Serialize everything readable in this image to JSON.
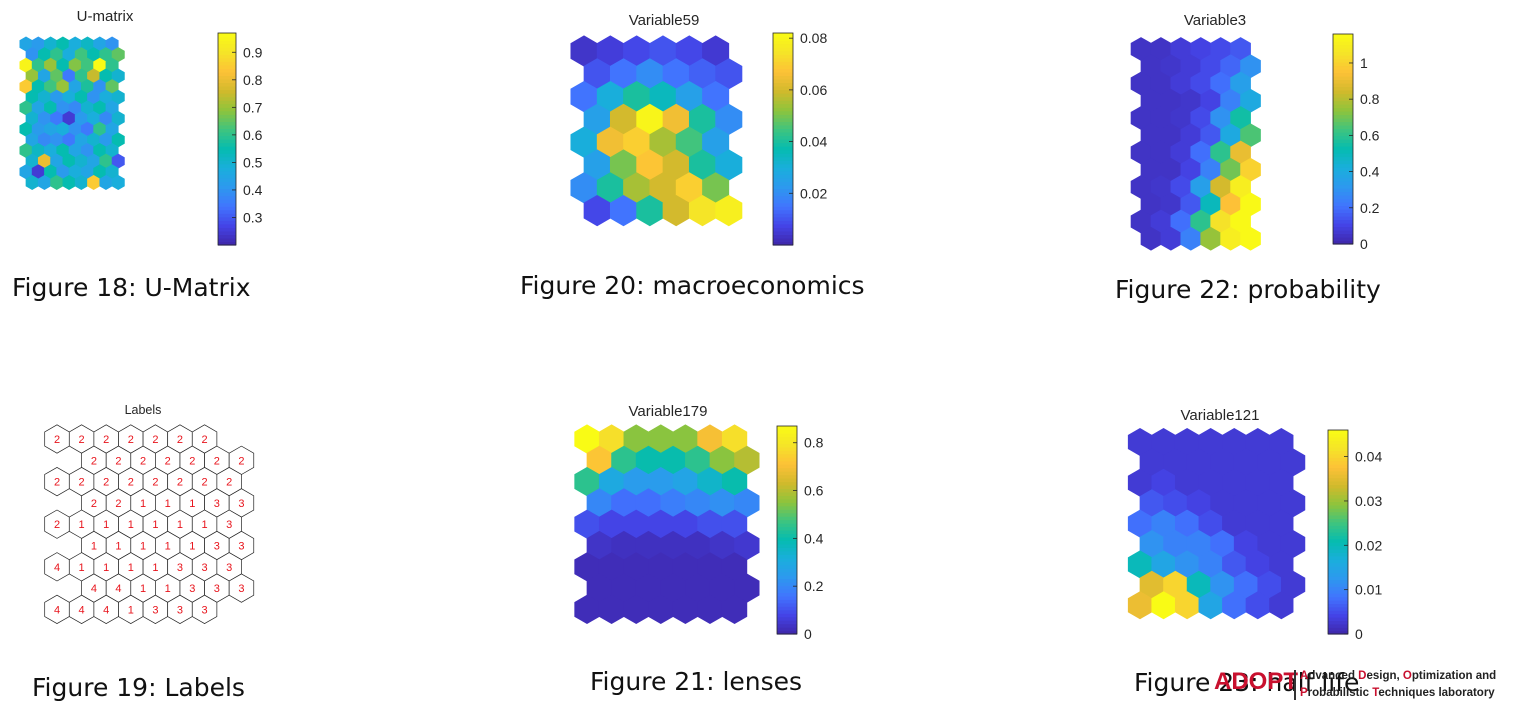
{
  "colormap": [
    "#3e26a8",
    "#4443e6",
    "#4174fe",
    "#2d98ef",
    "#1aaedc",
    "#05bcb0",
    "#3ec47f",
    "#8ec43c",
    "#d1ba2c",
    "#fdc137",
    "#f5e428",
    "#f9fb15"
  ],
  "chart_data": [
    {
      "id": "umatrix",
      "type": "heatmap",
      "title": "U-matrix",
      "caption": "Figure 18: U-Matrix",
      "rows": 14,
      "cols": 8,
      "vmin": 0.2,
      "vmax": 0.97,
      "ticks": [
        0.3,
        0.4,
        0.5,
        0.6,
        0.7,
        0.8,
        0.9
      ],
      "tick_labels": [
        "0.3",
        "0.4",
        "0.5",
        "0.6",
        "0.7",
        "0.8",
        "0.9"
      ],
      "values": [
        [
          0.45,
          0.42,
          0.5,
          0.55,
          0.48,
          0.52,
          0.45,
          0.4
        ],
        [
          0.4,
          0.55,
          0.6,
          0.48,
          0.62,
          0.55,
          0.6,
          0.65
        ],
        [
          0.95,
          0.6,
          0.7,
          0.55,
          0.68,
          0.62,
          0.97,
          0.6
        ],
        [
          0.7,
          0.45,
          0.65,
          0.35,
          0.6,
          0.75,
          0.55,
          0.5
        ],
        [
          0.85,
          0.55,
          0.62,
          0.7,
          0.45,
          0.58,
          0.4,
          0.65
        ],
        [
          0.55,
          0.5,
          0.42,
          0.48,
          0.55,
          0.4,
          0.48,
          0.5
        ],
        [
          0.6,
          0.45,
          0.55,
          0.4,
          0.38,
          0.5,
          0.55,
          0.45
        ],
        [
          0.5,
          0.4,
          0.35,
          0.25,
          0.42,
          0.48,
          0.38,
          0.5
        ],
        [
          0.55,
          0.42,
          0.45,
          0.48,
          0.4,
          0.35,
          0.6,
          0.45
        ],
        [
          0.45,
          0.38,
          0.4,
          0.35,
          0.45,
          0.5,
          0.42,
          0.55
        ],
        [
          0.6,
          0.52,
          0.48,
          0.55,
          0.45,
          0.4,
          0.55,
          0.5
        ],
        [
          0.5,
          0.8,
          0.45,
          0.55,
          0.5,
          0.45,
          0.6,
          0.3
        ],
        [
          0.45,
          0.25,
          0.55,
          0.42,
          0.48,
          0.45,
          0.55,
          0.5
        ],
        [
          0.5,
          0.45,
          0.6,
          0.55,
          0.5,
          0.85,
          0.45,
          0.48
        ]
      ]
    },
    {
      "id": "var59",
      "type": "heatmap",
      "title": "Variable59",
      "caption": "Figure 20: macroeconomics",
      "rows": 8,
      "cols": 6,
      "vmin": 0.0,
      "vmax": 0.082,
      "ticks": [
        0.02,
        0.04,
        0.06,
        0.08
      ],
      "tick_labels": [
        "0.02",
        "0.04",
        "0.06",
        "0.08"
      ],
      "values": [
        [
          0.004,
          0.006,
          0.008,
          0.01,
          0.008,
          0.005
        ],
        [
          0.01,
          0.015,
          0.02,
          0.015,
          0.012,
          0.01
        ],
        [
          0.015,
          0.03,
          0.04,
          0.035,
          0.025,
          0.015
        ],
        [
          0.025,
          0.06,
          0.08,
          0.065,
          0.04,
          0.02
        ],
        [
          0.03,
          0.065,
          0.07,
          0.055,
          0.045,
          0.025
        ],
        [
          0.025,
          0.05,
          0.068,
          0.06,
          0.04,
          0.03
        ],
        [
          0.02,
          0.04,
          0.055,
          0.06,
          0.07,
          0.05
        ],
        [
          0.008,
          0.015,
          0.04,
          0.06,
          0.075,
          0.078
        ]
      ]
    },
    {
      "id": "var3",
      "type": "heatmap",
      "title": "Variable3",
      "caption": "Figure 22: probability",
      "rows": 12,
      "cols": 6,
      "vmin": 0.0,
      "vmax": 1.16,
      "ticks": [
        0,
        0.2,
        0.4,
        0.6,
        0.8,
        1
      ],
      "tick_labels": [
        "0",
        "0.2",
        "0.4",
        "0.6",
        "0.8",
        "1"
      ],
      "values": [
        [
          0.05,
          0.05,
          0.08,
          0.1,
          0.12,
          0.15
        ],
        [
          0.05,
          0.06,
          0.08,
          0.12,
          0.18,
          0.3
        ],
        [
          0.05,
          0.05,
          0.08,
          0.12,
          0.2,
          0.35
        ],
        [
          0.05,
          0.05,
          0.06,
          0.1,
          0.25,
          0.4
        ],
        [
          0.05,
          0.05,
          0.06,
          0.12,
          0.3,
          0.55
        ],
        [
          0.05,
          0.05,
          0.08,
          0.15,
          0.4,
          0.65
        ],
        [
          0.05,
          0.05,
          0.08,
          0.2,
          0.6,
          0.9
        ],
        [
          0.05,
          0.05,
          0.1,
          0.25,
          0.7,
          1.0
        ],
        [
          0.05,
          0.06,
          0.12,
          0.35,
          0.85,
          1.1
        ],
        [
          0.05,
          0.06,
          0.15,
          0.5,
          0.95,
          1.15
        ],
        [
          0.05,
          0.08,
          0.2,
          0.6,
          1.05,
          1.15
        ],
        [
          0.05,
          0.08,
          0.25,
          0.75,
          1.1,
          1.15
        ]
      ]
    },
    {
      "id": "labels",
      "type": "table",
      "title": "Labels",
      "caption": "Figure 19: Labels",
      "rows": 9,
      "cols": 8,
      "values": [
        [
          "2",
          "2",
          "2",
          "2",
          "2",
          "2",
          "2",
          ""
        ],
        [
          "",
          "2",
          "2",
          "2",
          "2",
          "2",
          "2",
          "2"
        ],
        [
          "2",
          "2",
          "2",
          "2",
          "2",
          "2",
          "2",
          "2"
        ],
        [
          "",
          "2",
          "2",
          "1",
          "1",
          "1",
          "3",
          "3"
        ],
        [
          "2",
          "1",
          "1",
          "1",
          "1",
          "1",
          "1",
          "3"
        ],
        [
          "",
          "1",
          "1",
          "1",
          "1",
          "1",
          "3",
          "3"
        ],
        [
          "4",
          "1",
          "1",
          "1",
          "1",
          "3",
          "3",
          "3"
        ],
        [
          "",
          "4",
          "4",
          "1",
          "1",
          "3",
          "3",
          "3"
        ],
        [
          "4",
          "4",
          "4",
          "1",
          "3",
          "3",
          "3",
          ""
        ]
      ]
    },
    {
      "id": "var179",
      "type": "heatmap",
      "title": "Variable179",
      "caption": "Figure 21: lenses",
      "rows": 9,
      "cols": 7,
      "vmin": 0.0,
      "vmax": 0.87,
      "ticks": [
        0,
        0.2,
        0.4,
        0.6,
        0.8
      ],
      "tick_labels": [
        "0",
        "0.2",
        "0.4",
        "0.6",
        "0.8"
      ],
      "values": [
        [
          0.87,
          0.78,
          0.55,
          0.55,
          0.55,
          0.7,
          0.78
        ],
        [
          0.72,
          0.45,
          0.4,
          0.4,
          0.45,
          0.55,
          0.6
        ],
        [
          0.45,
          0.3,
          0.25,
          0.25,
          0.28,
          0.35,
          0.4
        ],
        [
          0.2,
          0.15,
          0.15,
          0.18,
          0.2,
          0.22,
          0.2
        ],
        [
          0.1,
          0.08,
          0.08,
          0.08,
          0.08,
          0.1,
          0.1
        ],
        [
          0.04,
          0.03,
          0.03,
          0.03,
          0.03,
          0.04,
          0.05
        ],
        [
          0.02,
          0.02,
          0.02,
          0.02,
          0.02,
          0.02,
          0.02
        ],
        [
          0.02,
          0.02,
          0.02,
          0.02,
          0.02,
          0.02,
          0.02
        ],
        [
          0.02,
          0.02,
          0.02,
          0.02,
          0.02,
          0.02,
          0.02
        ]
      ]
    },
    {
      "id": "var121",
      "type": "heatmap",
      "title": "Variable121",
      "caption": "Figure 23: half life",
      "rows": 9,
      "cols": 7,
      "vmin": 0.0,
      "vmax": 0.046,
      "ticks": [
        0,
        0.01,
        0.02,
        0.03,
        0.04
      ],
      "tick_labels": [
        "0",
        "0.01",
        "0.02",
        "0.03",
        "0.04"
      ],
      "values": [
        [
          0.003,
          0.003,
          0.003,
          0.003,
          0.003,
          0.003,
          0.003
        ],
        [
          0.003,
          0.003,
          0.003,
          0.003,
          0.003,
          0.003,
          0.003
        ],
        [
          0.003,
          0.004,
          0.003,
          0.003,
          0.003,
          0.003,
          0.003
        ],
        [
          0.006,
          0.005,
          0.004,
          0.003,
          0.003,
          0.003,
          0.003
        ],
        [
          0.008,
          0.01,
          0.008,
          0.005,
          0.003,
          0.003,
          0.003
        ],
        [
          0.012,
          0.01,
          0.01,
          0.008,
          0.004,
          0.003,
          0.003
        ],
        [
          0.02,
          0.015,
          0.012,
          0.01,
          0.006,
          0.004,
          0.003
        ],
        [
          0.035,
          0.04,
          0.02,
          0.012,
          0.008,
          0.005,
          0.003
        ],
        [
          0.036,
          0.046,
          0.04,
          0.015,
          0.008,
          0.005,
          0.003
        ]
      ]
    }
  ],
  "logo": {
    "mark": "ADOPT",
    "line1_parts": [
      "A",
      "dvanced ",
      "D",
      "esign, ",
      "O",
      "ptimization and"
    ],
    "line2_parts": [
      "P",
      "robabilistic ",
      "T",
      "echniques laboratory"
    ]
  }
}
